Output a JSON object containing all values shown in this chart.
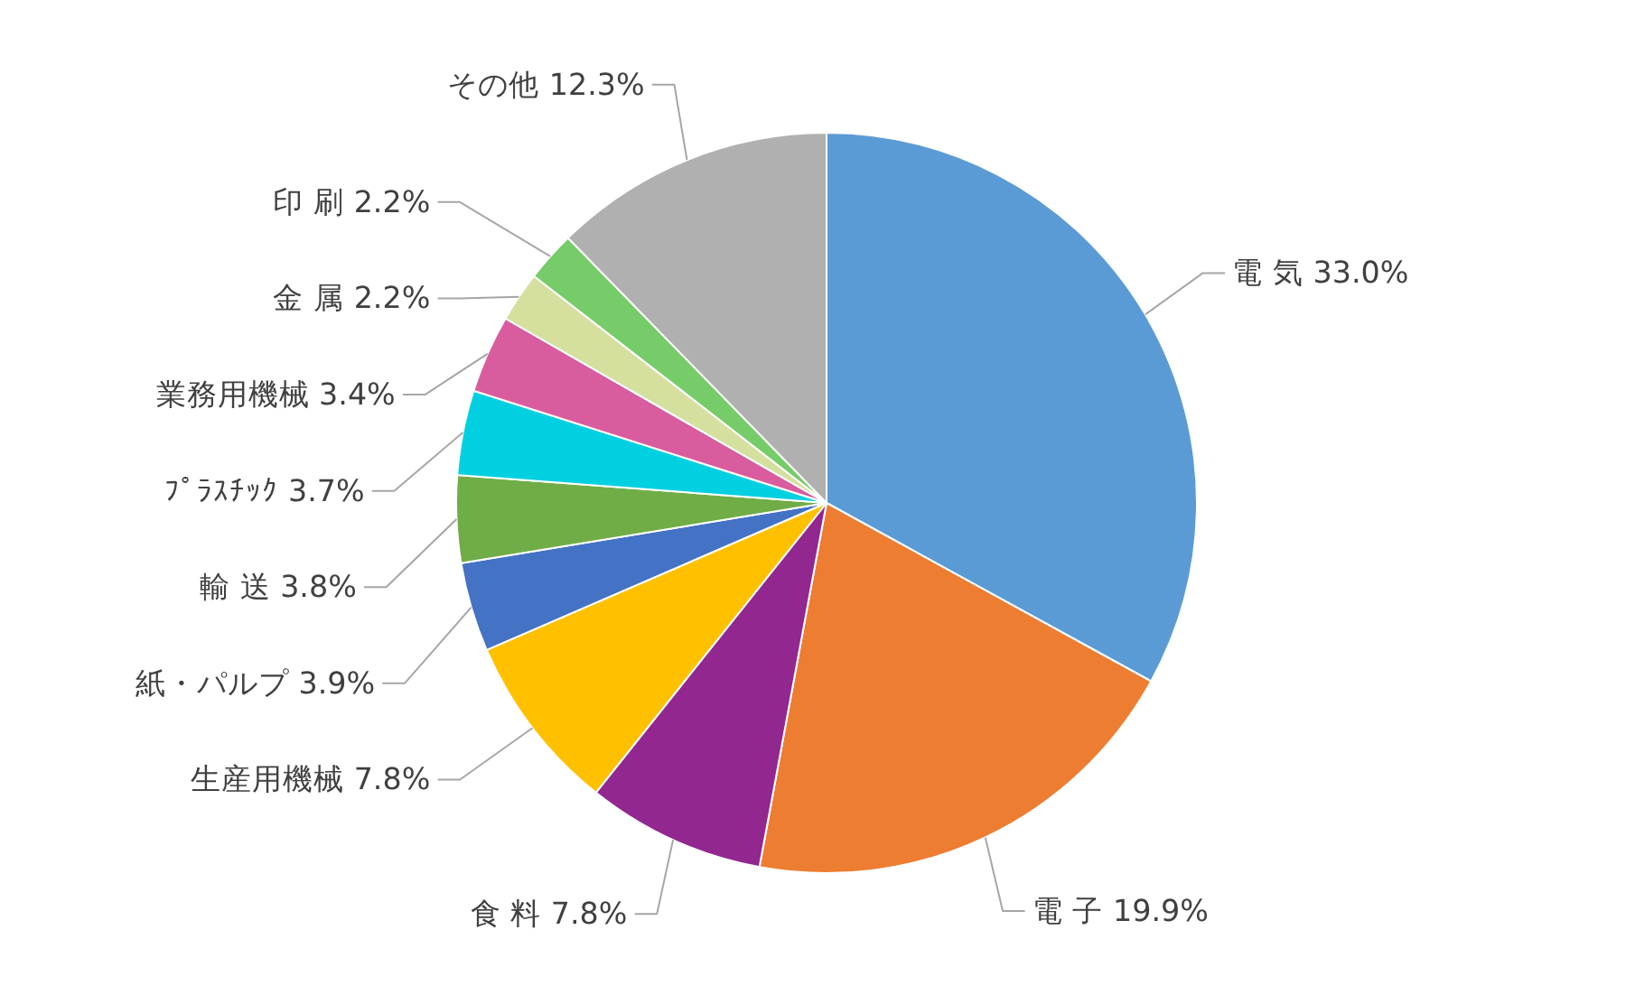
{
  "chart_data": {
    "type": "pie",
    "categories": [
      "電 気",
      "電 子",
      "食 料",
      "生産用機械",
      "紙・パルプ",
      "輸 送",
      "ﾌﾟﾗｽﾁｯｸ",
      "業務用機械",
      "金 属",
      "印 刷",
      "その他"
    ],
    "values": [
      33.0,
      19.9,
      7.8,
      7.8,
      3.9,
      3.8,
      3.7,
      3.4,
      2.2,
      2.2,
      12.3
    ],
    "value_labels": [
      "33.0%",
      "19.9%",
      "7.8%",
      "7.8%",
      "3.9%",
      "3.8%",
      "3.7%",
      "3.4%",
      "2.2%",
      "2.2%",
      "12.3%"
    ],
    "colors": [
      "#5b9bd5",
      "#ed7d31",
      "#92278f",
      "#ffc000",
      "#4472c4",
      "#70ad47",
      "#00d0e0",
      "#d85c9e",
      "#d5e09e",
      "#76cc68",
      "#b0b0b0"
    ]
  }
}
